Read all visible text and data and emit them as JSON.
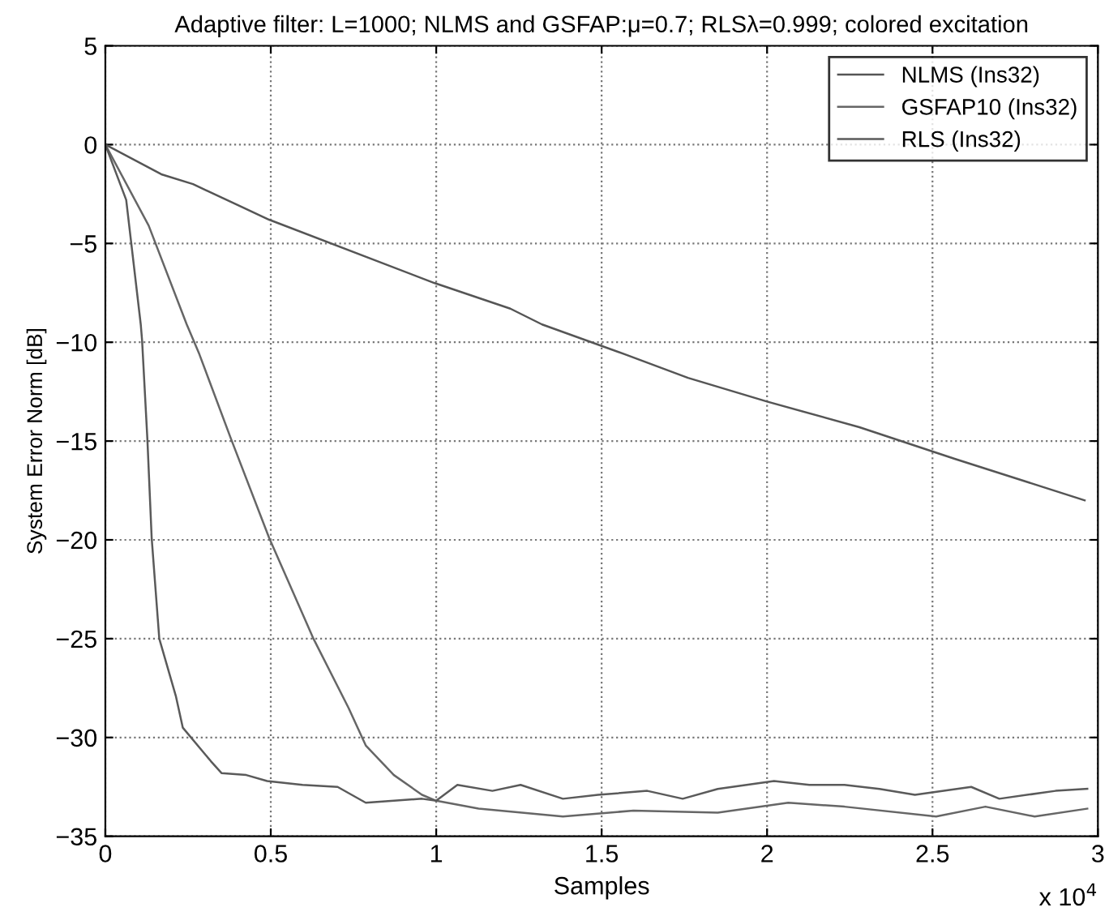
{
  "chart_data": {
    "type": "line",
    "title": "Adaptive filter: L=1000; NLMS and GSFAP:μ=0.7; RLSλ=0.999; colored excitation",
    "xlabel": "Samples",
    "ylabel": "System Error Norm [dB]",
    "annotations": [
      "x 10$^{4}$"
    ],
    "series": [
      {
        "name": "NLMS (Ins32)",
        "color": "#555555",
        "x": [
          0,
          0.169,
          0.265,
          0.495,
          0.994,
          1.224,
          1.32,
          1.569,
          1.761,
          2.0,
          2.279,
          2.567,
          2.96
        ],
        "values": [
          0,
          -1.5,
          -2.0,
          -3.8,
          -7.0,
          -8.3,
          -9.1,
          -10.6,
          -11.8,
          -13.0,
          -14.3,
          -15.9,
          -18.0
        ]
      },
      {
        "name": "GSFAP10 (Ins32)",
        "color": "#666666",
        "x": [
          0,
          0.131,
          0.246,
          0.284,
          0.38,
          0.495,
          0.629,
          0.735,
          0.787,
          0.872,
          0.957,
          1.0,
          1.128,
          1.383,
          1.596,
          1.851,
          2.064,
          2.234,
          2.511,
          2.66,
          2.809,
          2.968
        ],
        "values": [
          0,
          -4.1,
          -9.1,
          -10.6,
          -14.9,
          -19.9,
          -25.0,
          -28.5,
          -30.4,
          -31.9,
          -32.9,
          -33.2,
          -33.6,
          -34.0,
          -33.7,
          -33.8,
          -33.3,
          -33.5,
          -34.0,
          -33.5,
          -34.0,
          -33.6
        ]
      },
      {
        "name": "RLS (Ins32)",
        "color": "#5a5a5a",
        "x": [
          0,
          0.063,
          0.107,
          0.111,
          0.127,
          0.14,
          0.163,
          0.213,
          0.234,
          0.319,
          0.351,
          0.426,
          0.489,
          0.596,
          0.702,
          0.787,
          0.872,
          0.957,
          1.0,
          1.064,
          1.17,
          1.255,
          1.383,
          1.489,
          1.638,
          1.745,
          1.851,
          2.021,
          2.128,
          2.234,
          2.34,
          2.447,
          2.617,
          2.702,
          2.872,
          2.968
        ],
        "values": [
          0,
          -2.8,
          -9.1,
          -9.9,
          -14.9,
          -19.9,
          -25.0,
          -27.9,
          -29.5,
          -31.2,
          -31.8,
          -31.9,
          -32.2,
          -32.4,
          -32.5,
          -33.3,
          -33.2,
          -33.1,
          -33.2,
          -32.4,
          -32.7,
          -32.4,
          -33.1,
          -32.9,
          -32.7,
          -33.1,
          -32.6,
          -32.2,
          -32.4,
          -32.4,
          -32.6,
          -32.9,
          -32.5,
          -33.1,
          -32.7,
          -32.6
        ]
      }
    ],
    "xlim": [
      0,
      3
    ],
    "ylim": [
      -35,
      5
    ],
    "xticks": [
      0,
      0.5,
      1,
      1.5,
      2,
      2.5,
      3
    ],
    "yticks": [
      -35,
      -30,
      -25,
      -20,
      -15,
      -10,
      -5,
      0,
      5
    ],
    "grid": true,
    "legend": "top right",
    "line_style": "solid"
  }
}
